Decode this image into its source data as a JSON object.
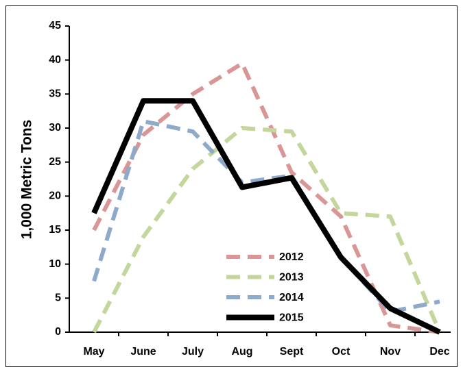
{
  "chart_data": {
    "type": "line",
    "y_label": "1,000 Metric Tons",
    "categories": [
      "May",
      "June",
      "July",
      "Aug",
      "Sept",
      "Oct",
      "Nov",
      "Dec"
    ],
    "series": [
      {
        "name": "2012",
        "color": "#d99694",
        "dashed": true,
        "values": [
          15,
          29,
          35,
          39.5,
          23.5,
          17,
          1,
          0
        ]
      },
      {
        "name": "2013",
        "color": "#c3d69b",
        "dashed": true,
        "values": [
          0,
          14,
          24,
          30,
          29.5,
          17.5,
          17,
          0
        ]
      },
      {
        "name": "2014",
        "color": "#8eaacb",
        "dashed": true,
        "values": [
          7.5,
          31,
          29.5,
          22,
          23,
          11,
          3,
          4.5
        ]
      },
      {
        "name": "2015",
        "color": "#000000",
        "dashed": false,
        "values": [
          17.5,
          34,
          34,
          21.3,
          22.7,
          11,
          3.5,
          0
        ]
      }
    ],
    "ylim": [
      0,
      45
    ],
    "yticks": [
      0,
      5,
      10,
      15,
      20,
      25,
      30,
      35,
      40,
      45
    ]
  }
}
